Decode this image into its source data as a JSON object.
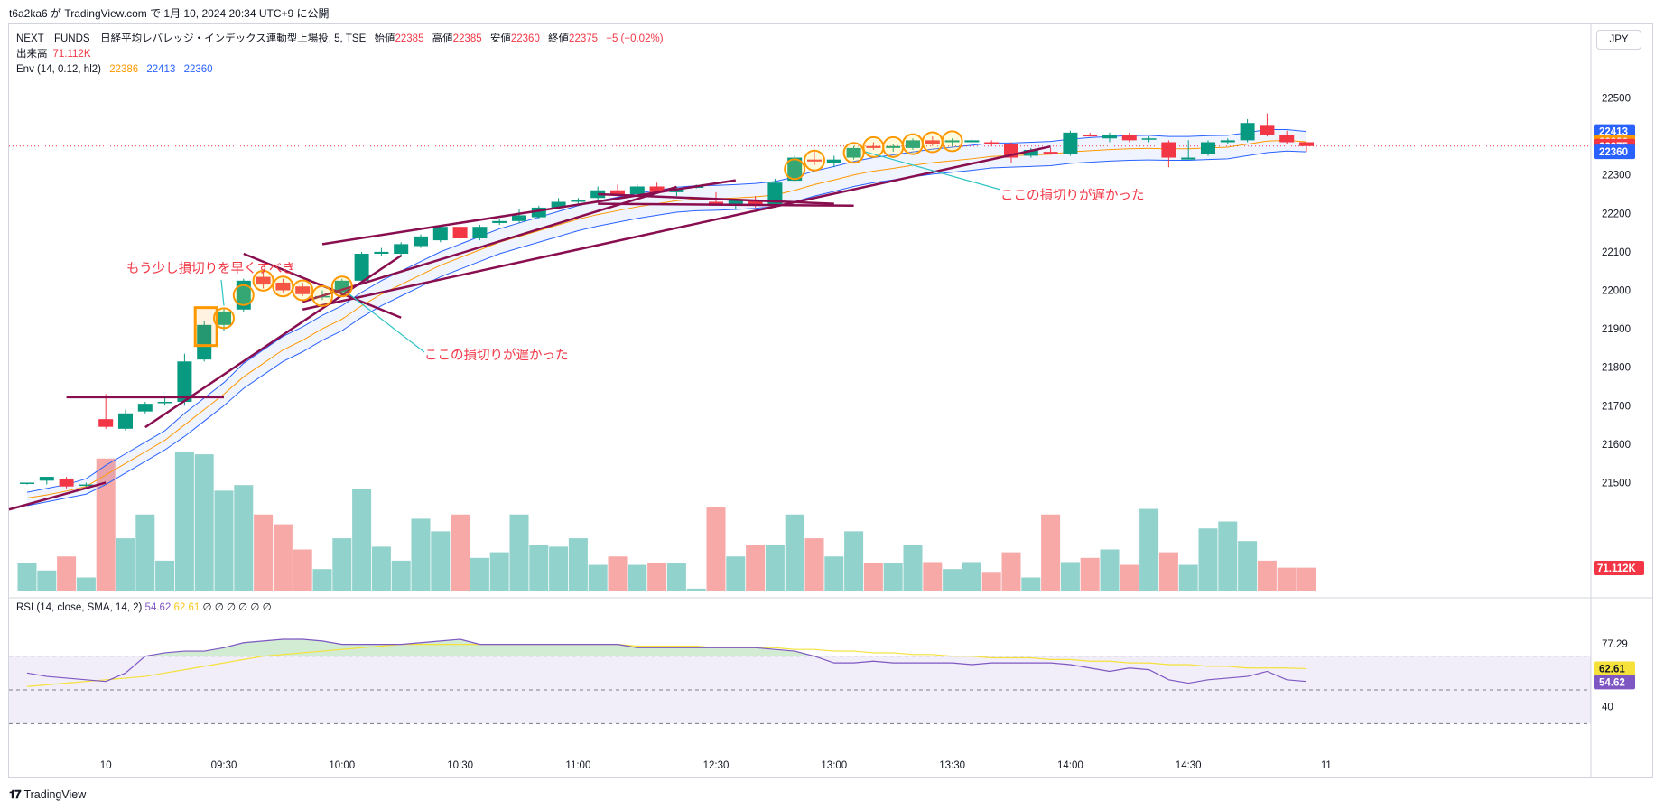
{
  "header": {
    "published_line": "t6a2ka6 が TradingView.com で 1月 10, 2024 20:34 UTC+9 に公開"
  },
  "legend": {
    "symbol": "NEXT　FUNDS　日経平均レバレッジ・インデックス連動型上場投, 5, TSE",
    "open_label": "始値",
    "open_value": "22385",
    "high_label": "高値",
    "high_value": "22385",
    "low_label": "安値",
    "low_value": "22360",
    "close_label": "終値",
    "close_value": "22375",
    "change": "−5 (−0.02%)",
    "volume_label": "出来高",
    "volume_value": "71.112K",
    "env_label": "Env (14, 0.12, hl2)",
    "env_mid": "22386",
    "env_upper": "22413",
    "env_lower": "22360"
  },
  "currency": "JPY",
  "rsi_legend": {
    "label": "RSI (14, close, SMA, 14, 2)",
    "rsi_value": "54.62",
    "ma_value": "62.61",
    "extras": "∅ ∅ ∅ ∅ ∅ ∅"
  },
  "footer": {
    "brand": "TradingView"
  },
  "colors": {
    "up": "#089981",
    "down": "#f23645",
    "vol_up": "#92d2cc",
    "vol_down": "#f7a9a7",
    "env_upper": "#2962ff",
    "env_mid": "#ff9800",
    "env_lower": "#2962ff",
    "trendline": "#880e4f",
    "annotation": "#f23645",
    "arrow": "#2ec4c4",
    "marker": "#ff9800",
    "rsi": "#7e57c2",
    "rsi_ma": "#f5e13a"
  },
  "chart_data": {
    "type": "candlestick",
    "price_axis": {
      "ticks": [
        22500,
        22400,
        22300,
        22200,
        22100,
        22000,
        21900,
        21800,
        21700,
        21600,
        21500
      ],
      "badges": [
        {
          "value": 22413,
          "label": "22413",
          "color": "#2962ff"
        },
        {
          "value": 22386,
          "label": "22386",
          "color": "#ff9800"
        },
        {
          "value": 22375,
          "label": "22375",
          "color": "#f23645"
        },
        {
          "value": 22360,
          "label": "22360",
          "color": "#2962ff"
        }
      ],
      "volume_badge": {
        "label": "71.112K",
        "color": "#f23645"
      }
    },
    "time_axis": [
      {
        "index": 4,
        "label": "10"
      },
      {
        "index": 10,
        "label": "09:30"
      },
      {
        "index": 16,
        "label": "10:00"
      },
      {
        "index": 22,
        "label": "10:30"
      },
      {
        "index": 28,
        "label": "11:00"
      },
      {
        "index": 35,
        "label": "12:30"
      },
      {
        "index": 41,
        "label": "13:00"
      },
      {
        "index": 47,
        "label": "13:30"
      },
      {
        "index": 53,
        "label": "14:00"
      },
      {
        "index": 59,
        "label": "14:30"
      },
      {
        "index": 66,
        "label": "11"
      }
    ],
    "candles": [
      {
        "o": 21500,
        "h": 21500,
        "l": 21495,
        "c": 21500
      },
      {
        "o": 21505,
        "h": 21515,
        "l": 21495,
        "c": 21515
      },
      {
        "o": 21510,
        "h": 21515,
        "l": 21485,
        "c": 21490
      },
      {
        "o": 21495,
        "h": 21500,
        "l": 21490,
        "c": 21495
      },
      {
        "o": 21665,
        "h": 21730,
        "l": 21640,
        "c": 21645
      },
      {
        "o": 21640,
        "h": 21690,
        "l": 21635,
        "c": 21680
      },
      {
        "o": 21685,
        "h": 21710,
        "l": 21680,
        "c": 21705
      },
      {
        "o": 21710,
        "h": 21725,
        "l": 21700,
        "c": 21710
      },
      {
        "o": 21710,
        "h": 21835,
        "l": 21700,
        "c": 21815
      },
      {
        "o": 21820,
        "h": 21920,
        "l": 21815,
        "c": 21910
      },
      {
        "o": 21910,
        "h": 21955,
        "l": 21895,
        "c": 21945
      },
      {
        "o": 21950,
        "h": 22030,
        "l": 21945,
        "c": 22025
      },
      {
        "o": 22035,
        "h": 22050,
        "l": 22005,
        "c": 22015
      },
      {
        "o": 22020,
        "h": 22030,
        "l": 21995,
        "c": 22000
      },
      {
        "o": 22010,
        "h": 22020,
        "l": 21985,
        "c": 21990
      },
      {
        "o": 21985,
        "h": 22000,
        "l": 21975,
        "c": 21985
      },
      {
        "o": 21995,
        "h": 22030,
        "l": 21990,
        "c": 22025
      },
      {
        "o": 22025,
        "h": 22100,
        "l": 22020,
        "c": 22095
      },
      {
        "o": 22095,
        "h": 22110,
        "l": 22090,
        "c": 22100
      },
      {
        "o": 22095,
        "h": 22125,
        "l": 22090,
        "c": 22120
      },
      {
        "o": 22115,
        "h": 22145,
        "l": 22110,
        "c": 22140
      },
      {
        "o": 22130,
        "h": 22170,
        "l": 22125,
        "c": 22165
      },
      {
        "o": 22165,
        "h": 22170,
        "l": 22130,
        "c": 22135
      },
      {
        "o": 22135,
        "h": 22170,
        "l": 22130,
        "c": 22165
      },
      {
        "o": 22175,
        "h": 22185,
        "l": 22170,
        "c": 22180
      },
      {
        "o": 22180,
        "h": 22210,
        "l": 22175,
        "c": 22195
      },
      {
        "o": 22190,
        "h": 22220,
        "l": 22185,
        "c": 22215
      },
      {
        "o": 22215,
        "h": 22240,
        "l": 22210,
        "c": 22230
      },
      {
        "o": 22230,
        "h": 22240,
        "l": 22225,
        "c": 22235
      },
      {
        "o": 22240,
        "h": 22270,
        "l": 22235,
        "c": 22260
      },
      {
        "o": 22260,
        "h": 22275,
        "l": 22245,
        "c": 22250
      },
      {
        "o": 22250,
        "h": 22275,
        "l": 22245,
        "c": 22270
      },
      {
        "o": 22270,
        "h": 22280,
        "l": 22255,
        "c": 22255
      },
      {
        "o": 22255,
        "h": 22270,
        "l": 22245,
        "c": 22265
      },
      {
        "o": 22270,
        "h": 22275,
        "l": 22265,
        "c": 22270
      },
      {
        "o": 22230,
        "h": 22255,
        "l": 22220,
        "c": 22220
      },
      {
        "o": 22220,
        "h": 22235,
        "l": 22210,
        "c": 22235
      },
      {
        "o": 22235,
        "h": 22245,
        "l": 22215,
        "c": 22220
      },
      {
        "o": 22220,
        "h": 22290,
        "l": 22215,
        "c": 22280
      },
      {
        "o": 22285,
        "h": 22350,
        "l": 22280,
        "c": 22345
      },
      {
        "o": 22340,
        "h": 22365,
        "l": 22325,
        "c": 22335
      },
      {
        "o": 22330,
        "h": 22350,
        "l": 22320,
        "c": 22340
      },
      {
        "o": 22345,
        "h": 22375,
        "l": 22340,
        "c": 22370
      },
      {
        "o": 22375,
        "h": 22385,
        "l": 22365,
        "c": 22370
      },
      {
        "o": 22370,
        "h": 22380,
        "l": 22360,
        "c": 22375
      },
      {
        "o": 22370,
        "h": 22395,
        "l": 22365,
        "c": 22390
      },
      {
        "o": 22390,
        "h": 22400,
        "l": 22375,
        "c": 22380
      },
      {
        "o": 22385,
        "h": 22395,
        "l": 22375,
        "c": 22390
      },
      {
        "o": 22385,
        "h": 22395,
        "l": 22380,
        "c": 22390
      },
      {
        "o": 22385,
        "h": 22390,
        "l": 22375,
        "c": 22380
      },
      {
        "o": 22380,
        "h": 22385,
        "l": 22330,
        "c": 22345
      },
      {
        "o": 22350,
        "h": 22370,
        "l": 22345,
        "c": 22365
      },
      {
        "o": 22360,
        "h": 22370,
        "l": 22355,
        "c": 22355
      },
      {
        "o": 22355,
        "h": 22415,
        "l": 22350,
        "c": 22410
      },
      {
        "o": 22405,
        "h": 22410,
        "l": 22400,
        "c": 22400
      },
      {
        "o": 22395,
        "h": 22410,
        "l": 22385,
        "c": 22405
      },
      {
        "o": 22405,
        "h": 22410,
        "l": 22385,
        "c": 22390
      },
      {
        "o": 22395,
        "h": 22400,
        "l": 22385,
        "c": 22395
      },
      {
        "o": 22385,
        "h": 22390,
        "l": 22320,
        "c": 22345
      },
      {
        "o": 22340,
        "h": 22390,
        "l": 22340,
        "c": 22345
      },
      {
        "o": 22355,
        "h": 22390,
        "l": 22350,
        "c": 22385
      },
      {
        "o": 22385,
        "h": 22395,
        "l": 22380,
        "c": 22390
      },
      {
        "o": 22390,
        "h": 22445,
        "l": 22385,
        "c": 22435
      },
      {
        "o": 22430,
        "h": 22460,
        "l": 22400,
        "c": 22405
      },
      {
        "o": 22405,
        "h": 22415,
        "l": 22380,
        "c": 22385
      },
      {
        "o": 22385,
        "h": 22385,
        "l": 22360,
        "c": 22375
      }
    ],
    "envelope": {
      "upper": [
        21475,
        21485,
        21495,
        21510,
        21545,
        21575,
        21605,
        21635,
        21680,
        21720,
        21760,
        21810,
        21845,
        21880,
        21905,
        21935,
        21960,
        21995,
        22025,
        22050,
        22075,
        22100,
        22120,
        22140,
        22160,
        22175,
        22190,
        22205,
        22220,
        22232,
        22242,
        22252,
        22260,
        22268,
        22272,
        22273,
        22275,
        22278,
        22283,
        22295,
        22310,
        22322,
        22335,
        22345,
        22352,
        22360,
        22367,
        22372,
        22377,
        22383,
        22383,
        22385,
        22387,
        22393,
        22397,
        22400,
        22402,
        22403,
        22400,
        22400,
        22402,
        22403,
        22410,
        22418,
        22418,
        22413
      ],
      "mid": [
        21460,
        21468,
        21478,
        21490,
        21520,
        21550,
        21580,
        21610,
        21650,
        21690,
        21730,
        21775,
        21810,
        21845,
        21870,
        21900,
        21925,
        21960,
        21990,
        22015,
        22040,
        22065,
        22085,
        22105,
        22125,
        22140,
        22155,
        22170,
        22185,
        22197,
        22207,
        22217,
        22225,
        22233,
        22237,
        22238,
        22240,
        22243,
        22248,
        22260,
        22275,
        22287,
        22300,
        22310,
        22317,
        22325,
        22332,
        22337,
        22342,
        22348,
        22350,
        22352,
        22354,
        22360,
        22363,
        22366,
        22368,
        22369,
        22368,
        22368,
        22370,
        22372,
        22380,
        22388,
        22390,
        22386
      ],
      "lower": [
        21440,
        21450,
        21460,
        21470,
        21495,
        21525,
        21555,
        21585,
        21620,
        21660,
        21700,
        21745,
        21780,
        21815,
        21840,
        21870,
        21895,
        21930,
        21960,
        21985,
        22010,
        22035,
        22055,
        22075,
        22095,
        22110,
        22125,
        22140,
        22155,
        22167,
        22177,
        22187,
        22195,
        22203,
        22207,
        22208,
        22210,
        22213,
        22218,
        22230,
        22245,
        22257,
        22270,
        22280,
        22287,
        22295,
        22302,
        22307,
        22312,
        22318,
        22320,
        22322,
        22324,
        22330,
        22333,
        22336,
        22338,
        22339,
        22338,
        22338,
        22340,
        22342,
        22350,
        22358,
        22362,
        22360
      ]
    },
    "volume": [
      0.2,
      0.15,
      0.25,
      0.1,
      0.95,
      0.38,
      0.55,
      0.22,
      1.0,
      0.98,
      0.72,
      0.76,
      0.55,
      0.48,
      0.3,
      0.16,
      0.38,
      0.73,
      0.32,
      0.22,
      0.52,
      0.43,
      0.55,
      0.24,
      0.28,
      0.55,
      0.33,
      0.32,
      0.38,
      0.19,
      0.25,
      0.19,
      0.2,
      0.2,
      0.02,
      0.6,
      0.25,
      0.33,
      0.33,
      0.55,
      0.38,
      0.25,
      0.43,
      0.2,
      0.2,
      0.33,
      0.21,
      0.16,
      0.21,
      0.14,
      0.28,
      0.1,
      0.55,
      0.21,
      0.24,
      0.3,
      0.19,
      0.59,
      0.28,
      0.19,
      0.45,
      0.5,
      0.36,
      0.22,
      0.17,
      0.17
    ],
    "rsi": {
      "levels": [
        77.29,
        54.14,
        40.0
      ],
      "badge_rsi": {
        "value": 54.62,
        "label": "54.62"
      },
      "badge_ma": {
        "value": 62.61,
        "label": "62.61"
      },
      "rsi_values": [
        60,
        58,
        57,
        56,
        55,
        60,
        70,
        72,
        73,
        73,
        75,
        78,
        79,
        80,
        80,
        79,
        77,
        77,
        77,
        77,
        78,
        79,
        80,
        77,
        77,
        77,
        77,
        77,
        77,
        77,
        77,
        75,
        75,
        75,
        75,
        75,
        75,
        75,
        74,
        73,
        70,
        66,
        66,
        67,
        66,
        66,
        66,
        66,
        65,
        66,
        66,
        66,
        66,
        65,
        63,
        61,
        63,
        62,
        56,
        54,
        56,
        57,
        58,
        61,
        56,
        55
      ],
      "ma_values": [
        52,
        53,
        54,
        55,
        56,
        57,
        58,
        60,
        62,
        64,
        66,
        68,
        70,
        71,
        72,
        73,
        74,
        75,
        76,
        77,
        77,
        77,
        77,
        77,
        77,
        77,
        77,
        77,
        77,
        77,
        77,
        76,
        76,
        76,
        76,
        75,
        75,
        75,
        75,
        74,
        74,
        73,
        73,
        72,
        72,
        71,
        71,
        70,
        70,
        69,
        69,
        69,
        68,
        68,
        67,
        67,
        66,
        66,
        65,
        65,
        64,
        64,
        63,
        63,
        63,
        62.61
      ],
      "obos_top": 70,
      "obos_mid": 50,
      "obos_bottom": 30
    },
    "annotations": [
      {
        "label": "もう少し損切りを早くすべき",
        "anchor_index": 10
      },
      {
        "label": "ここの損切りが遅かった",
        "anchor_index": 16
      },
      {
        "label": "ここの損切りが遅かった",
        "anchor_index": 41
      }
    ]
  }
}
